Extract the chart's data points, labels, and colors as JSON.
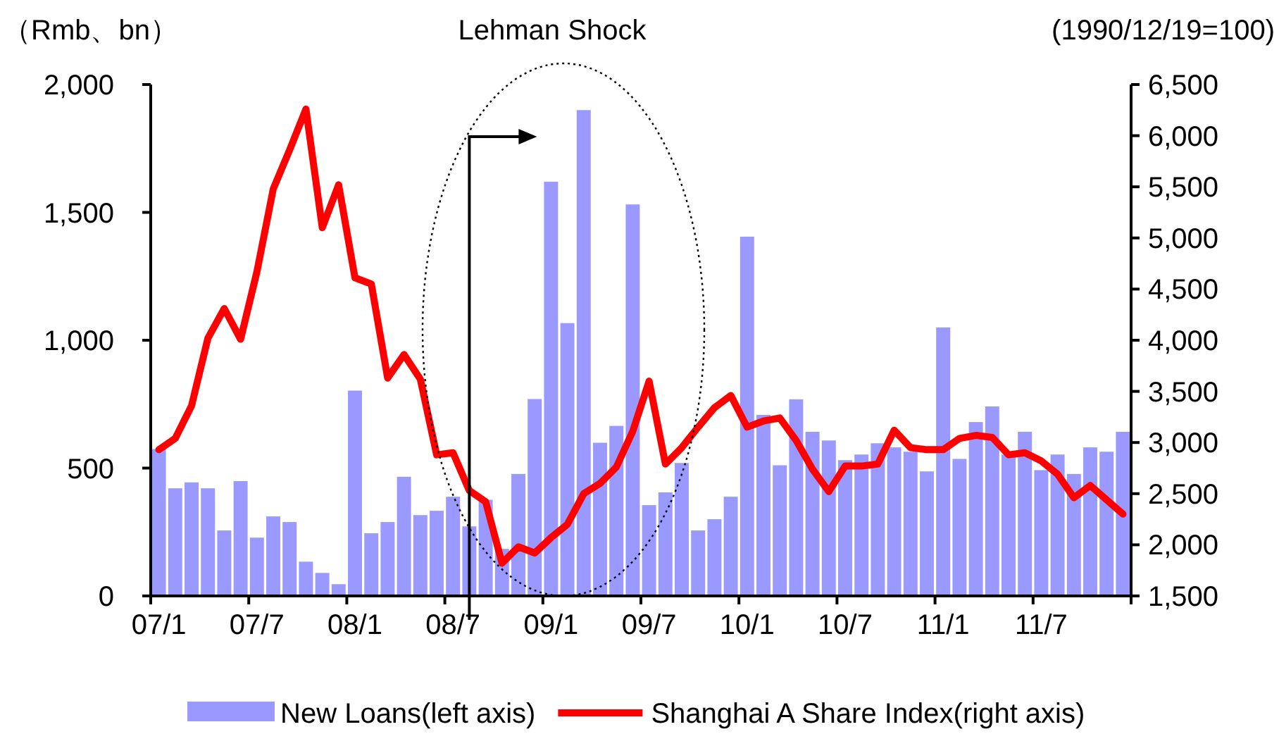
{
  "chart_data": {
    "type": "bar",
    "ylabel": "（Rmb、bn）",
    "y2label": "(1990/12/19=100)",
    "annotations": [
      "Lehman Shock"
    ],
    "categories": [
      "07/1",
      null,
      null,
      null,
      null,
      null,
      "07/7",
      null,
      null,
      null,
      null,
      null,
      "08/1",
      null,
      null,
      null,
      null,
      null,
      "08/7",
      null,
      null,
      null,
      null,
      null,
      "09/1",
      null,
      null,
      null,
      null,
      null,
      "09/7",
      null,
      null,
      null,
      null,
      null,
      "10/1",
      null,
      null,
      null,
      null,
      null,
      "10/7",
      null,
      null,
      null,
      null,
      null,
      "11/1",
      null,
      null,
      null,
      null,
      null,
      "11/7",
      null,
      null,
      null,
      null,
      null
    ],
    "series": [
      {
        "name": "New Loans(left axis)",
        "color": "#9999ff",
        "values": [
          574,
          421,
          444,
          421,
          256,
          449,
          228,
          311,
          289,
          134,
          90,
          46,
          803,
          245,
          289,
          466,
          316,
          333,
          388,
          272,
          376,
          184,
          477,
          770,
          1620,
          1067,
          1900,
          599,
          665,
          1531,
          355,
          405,
          520,
          256,
          300,
          388,
          1405,
          708,
          511,
          769,
          642,
          608,
          531,
          553,
          597,
          581,
          564,
          487,
          1050,
          536,
          680,
          741,
          553,
          642,
          492,
          553,
          477,
          581,
          564,
          642
        ]
      },
      {
        "name": "Shanghai A Share Index(right axis)",
        "type": "line",
        "axis": "y2",
        "color": "#ff0000",
        "values": [
          2930,
          3040,
          3360,
          4020,
          4310,
          4010,
          4670,
          5480,
          5860,
          6260,
          5100,
          5520,
          4610,
          4550,
          3630,
          3860,
          3620,
          2880,
          2900,
          2530,
          2420,
          1820,
          1980,
          1920,
          2070,
          2200,
          2500,
          2600,
          2760,
          3110,
          3600,
          2790,
          2950,
          3150,
          3340,
          3460,
          3150,
          3210,
          3240,
          3020,
          2740,
          2520,
          2770,
          2770,
          2790,
          3120,
          2950,
          2930,
          2930,
          3040,
          3070,
          3050,
          2880,
          2900,
          2820,
          2690,
          2460,
          2580,
          2440,
          2300
        ]
      }
    ],
    "ylim": [
      0,
      2000
    ],
    "yticks": [
      0,
      500,
      {
        "value": 1000,
        "label": "1,000"
      },
      {
        "value": 1500,
        "label": "1,500"
      },
      {
        "value": 2000,
        "label": "2,000"
      }
    ],
    "y2lim": [
      1500,
      6500
    ],
    "y2ticks": [
      {
        "value": 1500,
        "label": "1,500"
      },
      {
        "value": 2000,
        "label": "2,000"
      },
      {
        "value": 2500,
        "label": "2,500"
      },
      {
        "value": 3000,
        "label": "3,000"
      },
      {
        "value": 3500,
        "label": "3,500"
      },
      {
        "value": 4000,
        "label": "4,000"
      },
      {
        "value": 4500,
        "label": "4,500"
      },
      {
        "value": 5000,
        "label": "5,000"
      },
      {
        "value": 5500,
        "label": "5,500"
      },
      {
        "value": 6000,
        "label": "6,000"
      },
      {
        "value": 6500,
        "label": "6,500"
      }
    ],
    "legend": "bottom"
  }
}
